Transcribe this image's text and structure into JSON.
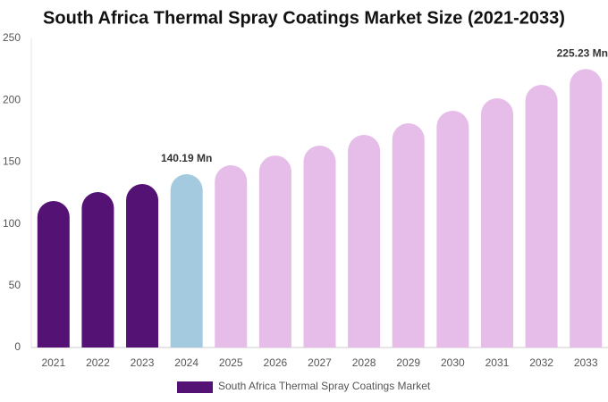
{
  "chart_data": {
    "type": "bar",
    "title": "South Africa Thermal Spray Coatings Market Size (2021-2033)",
    "categories": [
      "2021",
      "2022",
      "2023",
      "2024",
      "2025",
      "2026",
      "2027",
      "2028",
      "2029",
      "2030",
      "2031",
      "2032",
      "2033"
    ],
    "series": [
      {
        "name": "South Africa Thermal Spray Coatings Market",
        "color": "#541275",
        "colors": [
          "#541275",
          "#541275",
          "#541275",
          "#a4cadf",
          "#e6bde9",
          "#e6bde9",
          "#e6bde9",
          "#e6bde9",
          "#e6bde9",
          "#e6bde9",
          "#e6bde9",
          "#e6bde9",
          "#e6bde9"
        ],
        "values": [
          118.5,
          125.7,
          132.2,
          140.19,
          147.4,
          155.3,
          163.3,
          172,
          181.4,
          191.5,
          201.6,
          212.4,
          225.23
        ],
        "value_labels": [
          null,
          null,
          null,
          "140.19 Mn",
          null,
          null,
          null,
          null,
          null,
          null,
          null,
          null,
          "225.23 Mn"
        ]
      }
    ],
    "ylim": [
      0,
      250
    ],
    "yticks": [
      0,
      50,
      100,
      150,
      200,
      250
    ],
    "grid": false
  }
}
